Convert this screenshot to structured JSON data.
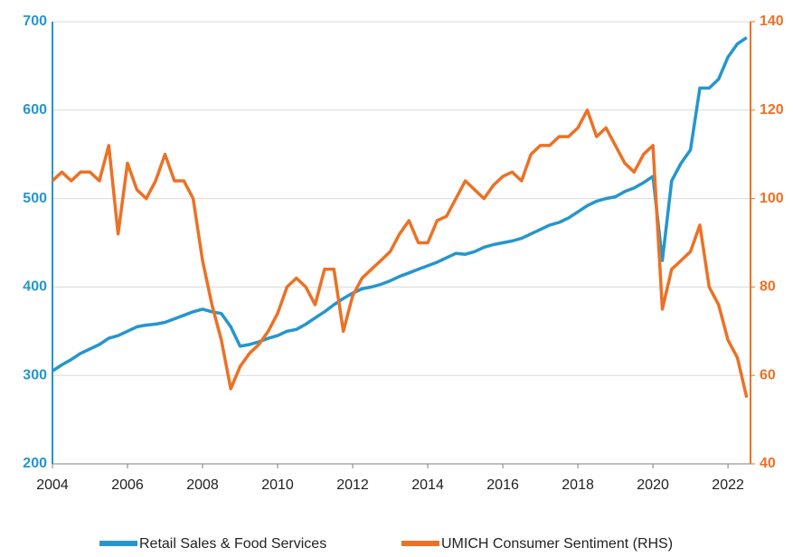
{
  "chart_data": {
    "type": "line",
    "x": [
      2004,
      2004.25,
      2004.5,
      2004.75,
      2005,
      2005.25,
      2005.5,
      2005.75,
      2006,
      2006.25,
      2006.5,
      2006.75,
      2007,
      2007.25,
      2007.5,
      2007.75,
      2008,
      2008.25,
      2008.5,
      2008.75,
      2009,
      2009.25,
      2009.5,
      2009.75,
      2010,
      2010.25,
      2010.5,
      2010.75,
      2011,
      2011.25,
      2011.5,
      2011.75,
      2012,
      2012.25,
      2012.5,
      2012.75,
      2013,
      2013.25,
      2013.5,
      2013.75,
      2014,
      2014.25,
      2014.5,
      2014.75,
      2015,
      2015.25,
      2015.5,
      2015.75,
      2016,
      2016.25,
      2016.5,
      2016.75,
      2017,
      2017.25,
      2017.5,
      2017.75,
      2018,
      2018.25,
      2018.5,
      2018.75,
      2019,
      2019.25,
      2019.5,
      2019.75,
      2020,
      2020.25,
      2020.5,
      2020.75,
      2021,
      2021.25,
      2021.5,
      2021.75,
      2022,
      2022.25,
      2022.5
    ],
    "series": [
      {
        "name": "Retail Sales & Food Services",
        "color": "#2596cd",
        "axis": "y",
        "values": [
          305,
          312,
          318,
          325,
          330,
          335,
          342,
          345,
          350,
          355,
          357,
          358,
          360,
          364,
          368,
          372,
          375,
          372,
          370,
          355,
          333,
          335,
          338,
          342,
          345,
          350,
          352,
          358,
          365,
          372,
          380,
          387,
          393,
          398,
          400,
          403,
          407,
          412,
          416,
          420,
          424,
          428,
          433,
          438,
          437,
          440,
          445,
          448,
          450,
          452,
          455,
          460,
          465,
          470,
          473,
          478,
          485,
          492,
          497,
          500,
          502,
          508,
          512,
          518,
          525,
          430,
          520,
          540,
          555,
          625,
          625,
          635,
          660,
          675,
          682
        ]
      },
      {
        "name": "UMICH Consumer Sentiment (RHS)",
        "color": "#ec7125",
        "axis": "y2",
        "values": [
          104,
          106,
          104,
          106,
          106,
          104,
          112,
          92,
          108,
          102,
          100,
          104,
          110,
          104,
          104,
          100,
          86,
          76,
          68,
          57,
          62,
          65,
          67,
          70,
          74,
          80,
          82,
          80,
          76,
          84,
          84,
          70,
          78,
          82,
          84,
          86,
          88,
          92,
          95,
          90,
          90,
          95,
          96,
          100,
          104,
          102,
          100,
          103,
          105,
          106,
          104,
          110,
          112,
          112,
          114,
          114,
          116,
          120,
          114,
          116,
          112,
          108,
          106,
          110,
          112,
          75,
          84,
          86,
          88,
          94,
          80,
          76,
          68,
          64,
          55
        ]
      }
    ],
    "xlim": [
      2004,
      2022.6
    ],
    "xticks": [
      2004,
      2006,
      2008,
      2010,
      2012,
      2014,
      2016,
      2018,
      2020,
      2022
    ],
    "ylim": [
      200,
      700
    ],
    "yticks": [
      200,
      300,
      400,
      500,
      600,
      700
    ],
    "y2lim": [
      40,
      140
    ],
    "y2ticks": [
      40,
      60,
      80,
      100,
      120,
      140
    ],
    "grid": true,
    "legend": "bottom"
  }
}
